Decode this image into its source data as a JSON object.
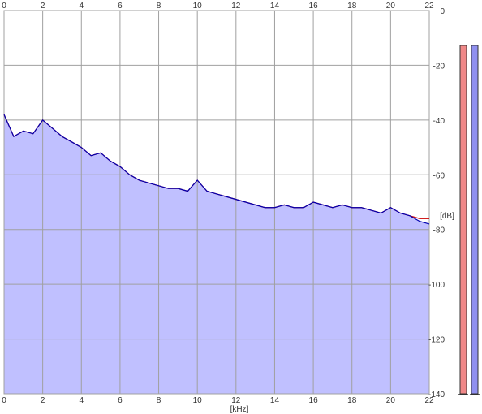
{
  "chart_data": {
    "type": "line",
    "title": "",
    "xlabel": "[kHz]",
    "ylabel": "[dB]",
    "xlim": [
      0,
      22
    ],
    "ylim": [
      -140,
      0
    ],
    "x_ticks": [
      "0",
      "2",
      "4",
      "6",
      "8",
      "10",
      "12",
      "14",
      "16",
      "18",
      "20",
      "22"
    ],
    "y_ticks": [
      "0",
      "-20",
      "-40",
      "-60",
      "-80",
      "-100",
      "-120",
      "-140"
    ],
    "grid": true,
    "legend": "none",
    "series": [
      {
        "color": "#cc0000",
        "x": [
          0,
          0.5,
          1,
          1.5,
          2,
          2.5,
          3,
          3.5,
          4,
          4.5,
          5,
          5.5,
          6,
          6.5,
          7,
          7.5,
          8,
          8.5,
          9,
          9.5,
          10,
          10.5,
          11,
          11.5,
          12,
          12.5,
          13,
          13.5,
          14,
          14.5,
          15,
          15.5,
          16,
          16.5,
          17,
          17.5,
          18,
          18.5,
          19,
          19.5,
          20,
          20.5,
          21,
          21.5,
          22
        ],
        "y": [
          -38,
          -46,
          -44,
          -45,
          -40,
          -43,
          -46,
          -48,
          -50,
          -53,
          -52,
          -55,
          -57,
          -60,
          -62,
          -63,
          -64,
          -65,
          -65,
          -66,
          -62,
          -66,
          -67,
          -68,
          -69,
          -70,
          -71,
          -72,
          -72,
          -71,
          -72,
          -72,
          -70,
          -71,
          -72,
          -71,
          -72,
          -72,
          -73,
          -74,
          -72,
          -74,
          -75,
          -76,
          -76
        ]
      },
      {
        "color": "#0000b0",
        "x": [
          0,
          0.5,
          1,
          1.5,
          2,
          2.5,
          3,
          3.5,
          4,
          4.5,
          5,
          5.5,
          6,
          6.5,
          7,
          7.5,
          8,
          8.5,
          9,
          9.5,
          10,
          10.5,
          11,
          11.5,
          12,
          12.5,
          13,
          13.5,
          14,
          14.5,
          15,
          15.5,
          16,
          16.5,
          17,
          17.5,
          18,
          18.5,
          19,
          19.5,
          20,
          20.5,
          21,
          21.5,
          22
        ],
        "y": [
          -38,
          -46,
          -44,
          -45,
          -40,
          -43,
          -46,
          -48,
          -50,
          -53,
          -52,
          -55,
          -57,
          -60,
          -62,
          -63,
          -64,
          -65,
          -65,
          -66,
          -62,
          -66,
          -67,
          -68,
          -69,
          -70,
          -71,
          -72,
          -72,
          -71,
          -72,
          -72,
          -70,
          -71,
          -72,
          -71,
          -72,
          -72,
          -73,
          -74,
          -72,
          -74,
          -75,
          -77,
          -78
        ]
      }
    ],
    "level_meters": [
      {
        "color": "#f08888",
        "level_db": -140
      },
      {
        "color": "#9090f0",
        "level_db": -140
      }
    ]
  },
  "colors": {
    "fill": "#c0c0ff",
    "grid": "#a0a0a0",
    "axis_text": "#333333"
  }
}
